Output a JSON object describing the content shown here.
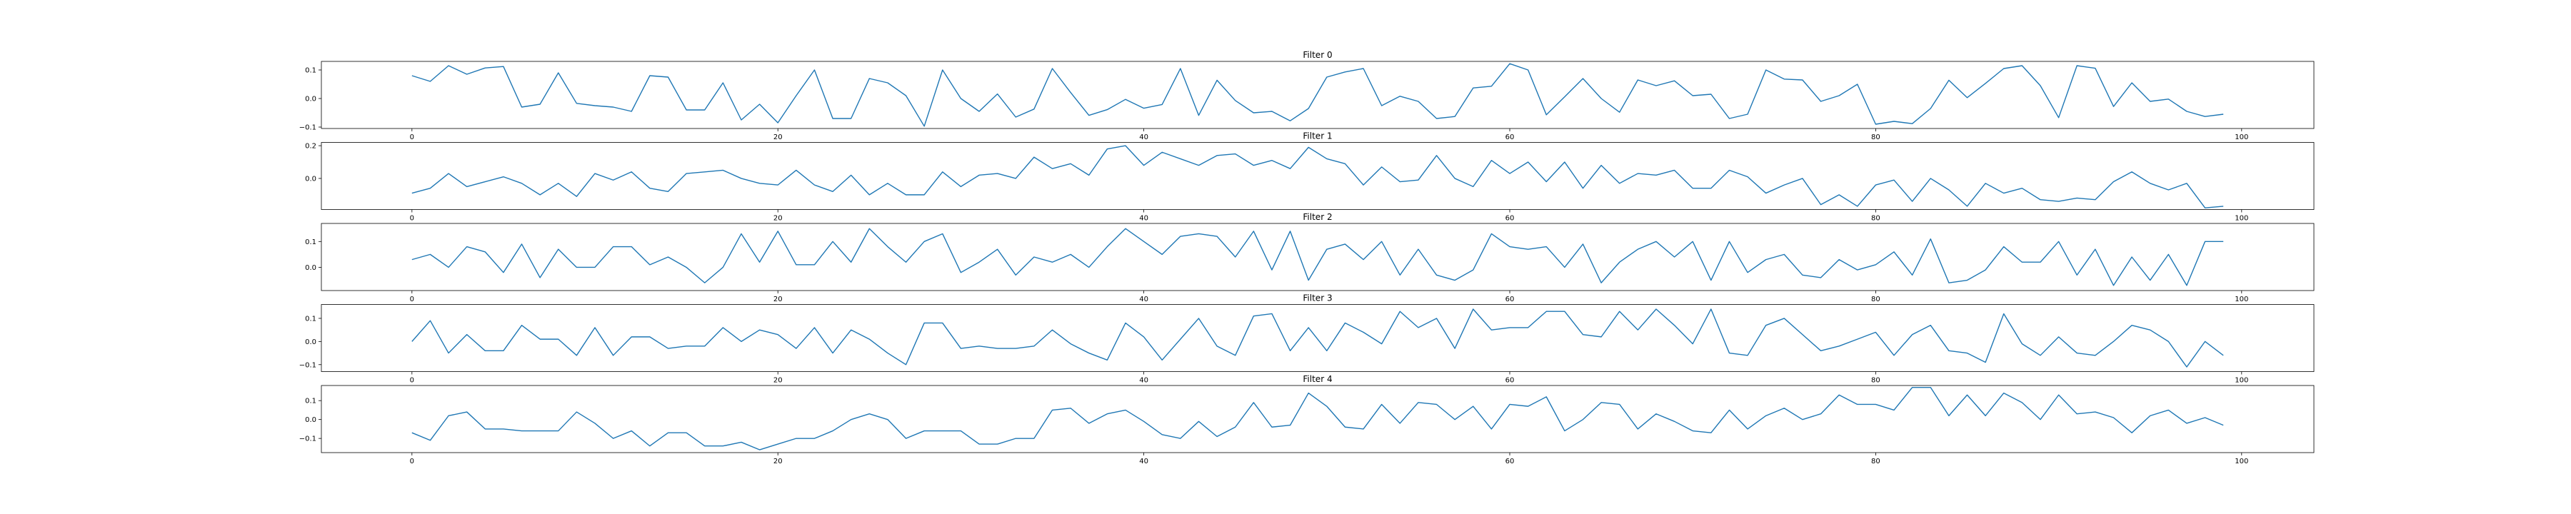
{
  "chart_data": [
    {
      "type": "line",
      "title": "Filter 0",
      "xlim": [
        -4.95,
        103.95
      ],
      "ylim": [
        -0.105,
        0.13
      ],
      "xticks": [
        0,
        20,
        40,
        60,
        80,
        100
      ],
      "yticks": [
        -0.1,
        0.0,
        0.1
      ],
      "ytick_labels": [
        "−0.1",
        "0.0",
        "0.1"
      ],
      "grid": false,
      "series": [
        {
          "color": "#1f77b4",
          "values": [
            0.08,
            0.06,
            0.115,
            0.085,
            0.107,
            0.112,
            -0.03,
            -0.02,
            0.09,
            -0.017,
            -0.025,
            -0.03,
            -0.045,
            0.08,
            0.075,
            -0.04,
            -0.04,
            0.055,
            -0.075,
            -0.02,
            -0.085,
            0.01,
            0.1,
            -0.07,
            -0.07,
            0.07,
            0.055,
            0.01,
            -0.097,
            0.1,
            0.0,
            -0.045,
            0.016,
            -0.065,
            -0.037,
            0.105,
            0.021,
            -0.059,
            -0.039,
            -0.003,
            -0.034,
            -0.021,
            0.105,
            -0.059,
            0.064,
            -0.007,
            -0.05,
            -0.045,
            -0.078,
            -0.035,
            0.075,
            0.093,
            0.105,
            -0.025,
            0.008,
            -0.01,
            -0.07,
            -0.063,
            0.037,
            0.043,
            0.122,
            0.1,
            -0.057,
            0.006,
            0.07,
            0.0,
            -0.048,
            0.065,
            0.045,
            0.062,
            0.01,
            0.015,
            -0.07,
            -0.055,
            0.1,
            0.068,
            0.065,
            -0.01,
            0.01,
            0.05,
            -0.09,
            -0.08,
            -0.088,
            -0.035,
            0.064,
            0.003,
            0.053,
            0.105,
            0.115,
            0.045,
            -0.067,
            0.115,
            0.106,
            -0.028,
            0.055,
            -0.01,
            -0.002,
            -0.045,
            -0.063,
            -0.055
          ]
        }
      ]
    },
    {
      "type": "line",
      "title": "Filter 1",
      "xlim": [
        -4.95,
        103.95
      ],
      "ylim": [
        -0.19,
        0.22
      ],
      "xticks": [
        0,
        20,
        40,
        60,
        80,
        100
      ],
      "yticks": [
        0.0,
        0.2
      ],
      "ytick_labels": [
        "0.0",
        "0.2"
      ],
      "grid": false,
      "series": [
        {
          "color": "#1f77b4",
          "values": [
            -0.09,
            -0.06,
            0.03,
            -0.05,
            -0.02,
            0.01,
            -0.03,
            -0.1,
            -0.03,
            -0.11,
            0.03,
            -0.01,
            0.04,
            -0.06,
            -0.08,
            0.03,
            0.04,
            0.05,
            0.0,
            -0.03,
            -0.04,
            0.05,
            -0.04,
            -0.08,
            0.02,
            -0.1,
            -0.03,
            -0.1,
            -0.1,
            0.04,
            -0.05,
            0.02,
            0.03,
            0.0,
            0.13,
            0.06,
            0.09,
            0.02,
            0.18,
            0.2,
            0.08,
            0.16,
            0.12,
            0.08,
            0.14,
            0.15,
            0.08,
            0.11,
            0.06,
            0.19,
            0.12,
            0.09,
            -0.04,
            0.07,
            -0.02,
            -0.01,
            0.14,
            0.0,
            -0.05,
            0.11,
            0.03,
            0.1,
            -0.02,
            0.1,
            -0.06,
            0.08,
            -0.03,
            0.03,
            0.02,
            0.05,
            -0.06,
            -0.06,
            0.05,
            0.01,
            -0.09,
            -0.04,
            0.0,
            -0.16,
            -0.1,
            -0.17,
            -0.04,
            -0.01,
            -0.14,
            0.0,
            -0.07,
            -0.17,
            -0.03,
            -0.09,
            -0.06,
            -0.13,
            -0.14,
            -0.12,
            -0.13,
            -0.02,
            0.04,
            -0.03,
            -0.07,
            -0.03,
            -0.18,
            -0.17
          ]
        }
      ]
    },
    {
      "type": "line",
      "title": "Filter 2",
      "xlim": [
        -4.95,
        103.95
      ],
      "ylim": [
        -0.09,
        0.17
      ],
      "xticks": [
        0,
        20,
        40,
        60,
        80,
        100
      ],
      "yticks": [
        0.0,
        0.1
      ],
      "ytick_labels": [
        "0.0",
        "0.1"
      ],
      "grid": false,
      "series": [
        {
          "color": "#1f77b4",
          "values": [
            0.03,
            0.05,
            0.0,
            0.08,
            0.06,
            -0.02,
            0.09,
            -0.04,
            0.07,
            0.0,
            0.0,
            0.08,
            0.08,
            0.01,
            0.04,
            0.0,
            -0.06,
            0.0,
            0.13,
            0.02,
            0.14,
            0.01,
            0.01,
            0.1,
            0.02,
            0.15,
            0.08,
            0.02,
            0.1,
            0.13,
            -0.02,
            0.02,
            0.07,
            -0.03,
            0.04,
            0.02,
            0.05,
            0.0,
            0.08,
            0.15,
            0.1,
            0.05,
            0.12,
            0.13,
            0.12,
            0.04,
            0.14,
            -0.01,
            0.14,
            -0.05,
            0.07,
            0.09,
            0.03,
            0.1,
            -0.03,
            0.07,
            -0.03,
            -0.05,
            -0.01,
            0.13,
            0.08,
            0.07,
            0.08,
            0.0,
            0.09,
            -0.06,
            0.02,
            0.07,
            0.1,
            0.04,
            0.1,
            -0.05,
            0.1,
            -0.02,
            0.03,
            0.05,
            -0.03,
            -0.04,
            0.03,
            -0.01,
            0.01,
            0.06,
            -0.03,
            0.11,
            -0.06,
            -0.05,
            -0.01,
            0.08,
            0.02,
            0.02,
            0.1,
            -0.03,
            0.07,
            -0.07,
            0.04,
            -0.05,
            0.05,
            -0.07,
            0.1,
            0.1
          ]
        }
      ]
    },
    {
      "type": "line",
      "title": "Filter 3",
      "xlim": [
        -4.95,
        103.95
      ],
      "ylim": [
        -0.13,
        0.16
      ],
      "xticks": [
        0,
        20,
        40,
        60,
        80,
        100
      ],
      "yticks": [
        -0.1,
        0.0,
        0.1
      ],
      "ytick_labels": [
        "−0.1",
        "0.0",
        "0.1"
      ],
      "grid": false,
      "series": [
        {
          "color": "#1f77b4",
          "values": [
            0.0,
            0.09,
            -0.05,
            0.03,
            -0.04,
            -0.04,
            0.07,
            0.01,
            0.01,
            -0.06,
            0.06,
            -0.06,
            0.02,
            0.02,
            -0.03,
            -0.02,
            -0.02,
            0.06,
            0.0,
            0.05,
            0.03,
            -0.03,
            0.06,
            -0.05,
            0.05,
            0.01,
            -0.05,
            -0.1,
            0.08,
            0.08,
            -0.03,
            -0.02,
            -0.03,
            -0.03,
            -0.02,
            0.05,
            -0.01,
            -0.05,
            -0.08,
            0.08,
            0.02,
            -0.08,
            0.01,
            0.1,
            -0.02,
            -0.06,
            0.11,
            0.12,
            -0.04,
            0.06,
            -0.04,
            0.08,
            0.04,
            -0.01,
            0.13,
            0.06,
            0.1,
            -0.03,
            0.14,
            0.05,
            0.06,
            0.06,
            0.13,
            0.13,
            0.03,
            0.02,
            0.13,
            0.05,
            0.14,
            0.07,
            -0.01,
            0.14,
            -0.05,
            -0.06,
            0.07,
            0.1,
            0.03,
            -0.04,
            -0.02,
            0.01,
            0.04,
            -0.06,
            0.03,
            0.07,
            -0.04,
            -0.05,
            -0.09,
            0.12,
            -0.01,
            -0.06,
            0.02,
            -0.05,
            -0.06,
            0.0,
            0.07,
            0.05,
            0.0,
            -0.11,
            0.0,
            -0.06
          ]
        }
      ]
    },
    {
      "type": "line",
      "title": "Filter 4",
      "xlim": [
        -4.95,
        103.95
      ],
      "ylim": [
        -0.175,
        0.18
      ],
      "xticks": [
        0,
        20,
        40,
        60,
        80,
        100
      ],
      "yticks": [
        -0.1,
        0.0,
        0.1
      ],
      "ytick_labels": [
        "−0.1",
        "0.0",
        "0.1"
      ],
      "grid": false,
      "series": [
        {
          "color": "#1f77b4",
          "values": [
            -0.07,
            -0.11,
            0.02,
            0.04,
            -0.05,
            -0.05,
            -0.06,
            -0.06,
            -0.06,
            0.04,
            -0.02,
            -0.1,
            -0.06,
            -0.14,
            -0.07,
            -0.07,
            -0.14,
            -0.14,
            -0.12,
            -0.16,
            -0.13,
            -0.1,
            -0.1,
            -0.06,
            0.0,
            0.03,
            0.0,
            -0.1,
            -0.06,
            -0.06,
            -0.06,
            -0.13,
            -0.13,
            -0.1,
            -0.1,
            0.05,
            0.06,
            -0.02,
            0.03,
            0.05,
            -0.01,
            -0.08,
            -0.1,
            -0.01,
            -0.09,
            -0.04,
            0.09,
            -0.04,
            -0.03,
            0.14,
            0.07,
            -0.04,
            -0.05,
            0.08,
            -0.02,
            0.09,
            0.08,
            0.0,
            0.07,
            -0.05,
            0.08,
            0.07,
            0.12,
            -0.06,
            0.0,
            0.09,
            0.08,
            -0.05,
            0.03,
            -0.01,
            -0.06,
            -0.07,
            0.05,
            -0.05,
            0.02,
            0.06,
            0.0,
            0.03,
            0.13,
            0.08,
            0.08,
            0.05,
            0.17,
            0.17,
            0.02,
            0.13,
            0.02,
            0.14,
            0.09,
            0.0,
            0.13,
            0.03,
            0.04,
            0.01,
            -0.07,
            0.02,
            0.05,
            -0.02,
            0.01,
            -0.03
          ]
        }
      ]
    }
  ]
}
